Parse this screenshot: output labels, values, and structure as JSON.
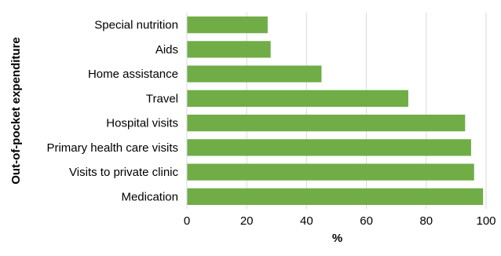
{
  "chart_data": {
    "type": "bar",
    "orientation": "horizontal",
    "categories": [
      "Special nutrition",
      "Aids",
      "Home assistance",
      "Travel",
      "Hospital visits",
      "Primary health care visits",
      "Visits to private clinic",
      "Medication"
    ],
    "values": [
      27,
      28,
      45,
      74,
      93,
      95,
      96,
      99
    ],
    "xlabel": "%",
    "ylabel": "Out-of-pocket expenditure",
    "xlim": [
      0,
      100
    ],
    "xticks": [
      "0",
      "20",
      "40",
      "60",
      "80",
      "100"
    ],
    "grid": "vertical",
    "bar_color": "#70ad47",
    "grid_color": "#d9d9d9"
  }
}
